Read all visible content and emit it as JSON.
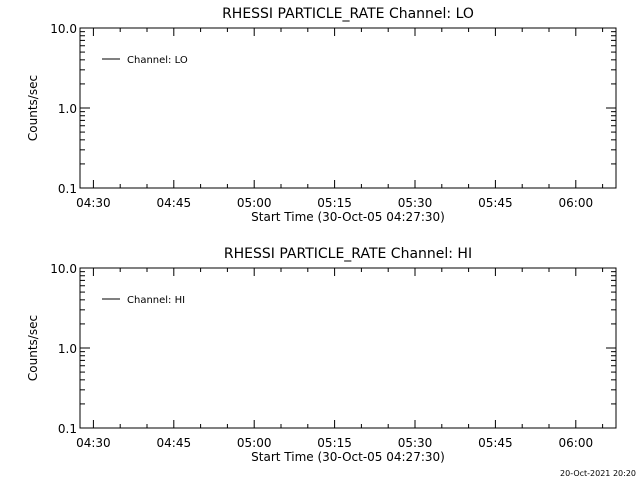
{
  "chart_data": [
    {
      "type": "line",
      "title": "RHESSI PARTICLE_RATE Channel: LO",
      "xlabel": "Start Time (30-Oct-05 04:27:30)",
      "ylabel": "Counts/sec",
      "y_scale": "log",
      "ylim": [
        0.1,
        10.0
      ],
      "y_ticks": [
        "0.1",
        "1.0",
        "10.0"
      ],
      "x_ticks": [
        "04:30",
        "04:45",
        "05:00",
        "05:15",
        "05:30",
        "05:45",
        "06:00"
      ],
      "xlim": [
        "04:27:30",
        "06:07:30"
      ],
      "grid": false,
      "legend_position": "top-left",
      "series": [
        {
          "name": "Channel: LO",
          "x": [],
          "y": []
        }
      ]
    },
    {
      "type": "line",
      "title": "RHESSI PARTICLE_RATE Channel: HI",
      "xlabel": "Start Time (30-Oct-05 04:27:30)",
      "ylabel": "Counts/sec",
      "y_scale": "log",
      "ylim": [
        0.1,
        10.0
      ],
      "y_ticks": [
        "0.1",
        "1.0",
        "10.0"
      ],
      "x_ticks": [
        "04:30",
        "04:45",
        "05:00",
        "05:15",
        "05:30",
        "05:45",
        "06:00"
      ],
      "xlim": [
        "04:27:30",
        "06:07:30"
      ],
      "grid": false,
      "legend_position": "top-left",
      "series": [
        {
          "name": "Channel: HI",
          "x": [],
          "y": []
        }
      ]
    }
  ],
  "footer": {
    "timestamp": "20-Oct-2021 20:20"
  }
}
